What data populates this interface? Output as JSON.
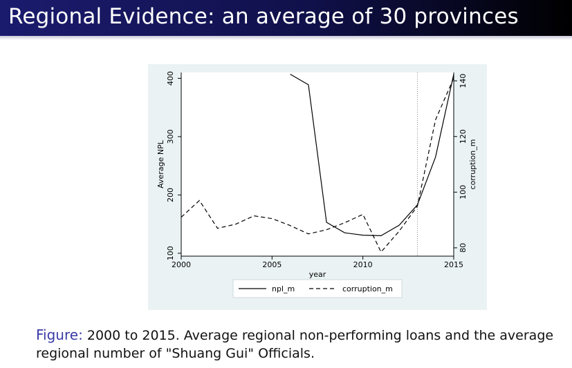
{
  "slide": {
    "title": "Regional Evidence: an average of 30 provinces",
    "caption_label": "Figure:",
    "caption_text": " 2000 to 2015. Average regional non-performing loans and the average regional number of \"Shuang Gui\" Officials."
  },
  "colors": {
    "title_bar": "#10104a",
    "plot_region_bg": "#eaf2f3",
    "plot_bg": "#ffffff",
    "line": "#000000",
    "caption_label": "#3a3aa8"
  },
  "chart_data": {
    "type": "line",
    "xlabel": "year",
    "xlim": [
      2000,
      2015
    ],
    "x_ticks": [
      2000,
      2005,
      2010,
      2015
    ],
    "y_left": {
      "label": "Average NPL",
      "lim": [
        95,
        410
      ],
      "ticks": [
        100,
        200,
        300,
        400
      ]
    },
    "y_right": {
      "label": "corruption_m",
      "lim": [
        77,
        143
      ],
      "ticks": [
        80,
        100,
        120,
        140
      ]
    },
    "vertical_line": {
      "x": 2013,
      "style": "dotted"
    },
    "grid": false,
    "legend_position": "bottom",
    "series": [
      {
        "name": "npl_m",
        "axis": "left",
        "style": "solid",
        "points": [
          [
            2006,
            407
          ],
          [
            2007,
            389
          ],
          [
            2008,
            153
          ],
          [
            2009,
            135
          ],
          [
            2010,
            131
          ],
          [
            2011,
            130
          ],
          [
            2012,
            148
          ],
          [
            2013,
            183
          ],
          [
            2014,
            265
          ],
          [
            2015,
            407
          ]
        ]
      },
      {
        "name": "corruption_m",
        "axis": "right",
        "style": "dashed",
        "points": [
          [
            2000,
            91
          ],
          [
            2001,
            97
          ],
          [
            2002,
            87
          ],
          [
            2003,
            88.5
          ],
          [
            2004,
            91.5
          ],
          [
            2005,
            90.5
          ],
          [
            2006,
            88
          ],
          [
            2007,
            85
          ],
          [
            2008,
            86.5
          ],
          [
            2009,
            89
          ],
          [
            2010,
            92
          ],
          [
            2011,
            78.5
          ],
          [
            2012,
            86
          ],
          [
            2013,
            95
          ],
          [
            2014,
            126
          ],
          [
            2015,
            141
          ]
        ]
      }
    ]
  }
}
